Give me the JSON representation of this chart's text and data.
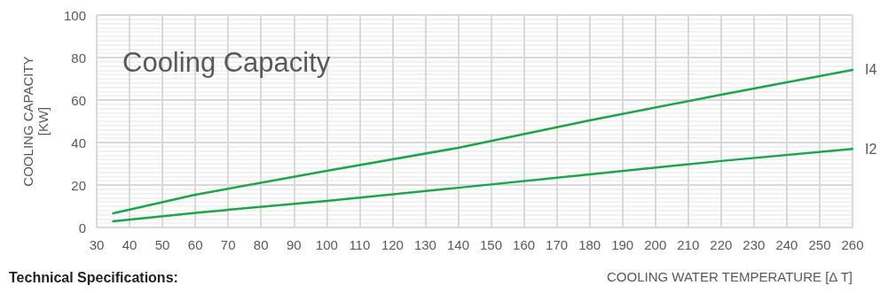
{
  "chart_data": {
    "type": "line",
    "title": "Cooling Capacity",
    "xlabel": "COOLING WATER TEMPERATURE [Δ T]",
    "ylabel": "COOLING CAPACITY\n[KW]",
    "annotations": [
      "Technical Specifications:"
    ],
    "x": [
      35,
      60,
      100,
      140,
      180,
      220,
      260
    ],
    "series": [
      {
        "name": "I4",
        "color": "#1aa64a",
        "values": [
          6.7,
          15.4,
          26.7,
          37.5,
          50.4,
          62.5,
          74.2
        ]
      },
      {
        "name": "I2",
        "color": "#1aa64a",
        "values": [
          2.9,
          6.9,
          12.5,
          18.7,
          25,
          31.3,
          37
        ]
      }
    ],
    "xlim": [
      30,
      260
    ],
    "xticks": [
      30,
      40,
      50,
      60,
      70,
      80,
      90,
      100,
      110,
      120,
      130,
      140,
      150,
      160,
      170,
      180,
      190,
      200,
      210,
      220,
      230,
      240,
      250,
      260
    ],
    "ylim": [
      0,
      100
    ],
    "yticks": [
      0,
      20,
      40,
      60,
      80,
      100
    ],
    "grid": true,
    "legend": false,
    "marker": "none",
    "line_style": "solid"
  }
}
